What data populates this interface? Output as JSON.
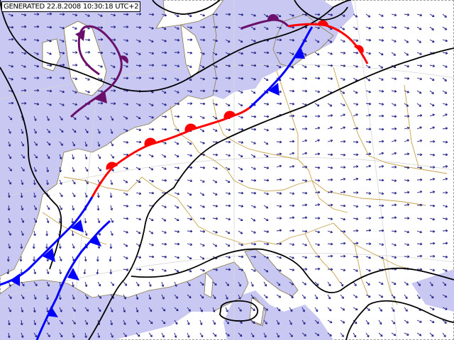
{
  "header": {
    "generated_label": "GENERATED 22.8.2008 10:30:18 UTC+2"
  },
  "map": {
    "colors": {
      "sea": "#c8c8f2",
      "land": "#ffffff",
      "borders": "#c6a14a",
      "coastline": "#8a7a4a",
      "isobar": "#000000",
      "wind_arrow": "#1a1a80",
      "warm_front": "#ff0000",
      "cold_front": "#0000ff",
      "occluded_front": "#6a0f6a",
      "graticule": "#d0d0d0"
    },
    "fronts": [
      {
        "type": "warm",
        "name": "warm-front-central-europe"
      },
      {
        "type": "warm",
        "name": "warm-front-baltic"
      },
      {
        "type": "cold",
        "name": "cold-front-germany-france"
      },
      {
        "type": "cold",
        "name": "cold-front-bay-of-biscay"
      },
      {
        "type": "cold",
        "name": "cold-front-south-france"
      },
      {
        "type": "occluded",
        "name": "occluded-front-british-isles"
      },
      {
        "type": "occluded",
        "name": "occluded-front-scandinavia"
      }
    ],
    "wind_field": {
      "arrow_type": "vector",
      "coverage": "full"
    }
  }
}
